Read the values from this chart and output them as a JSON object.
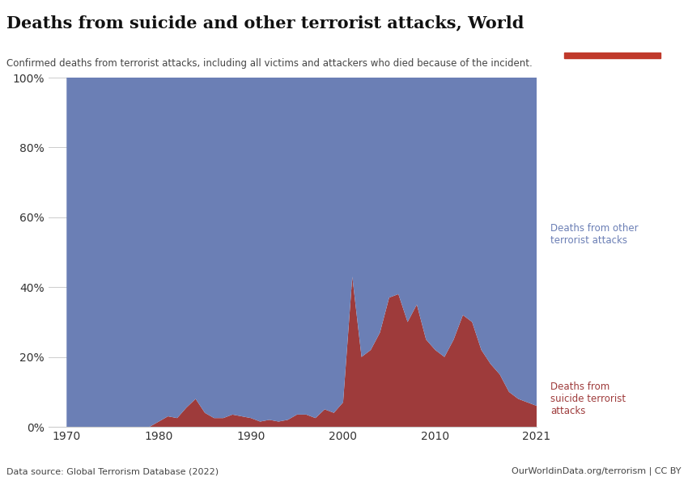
{
  "title": "Deaths from suicide and other terrorist attacks, World",
  "subtitle": "Confirmed deaths from terrorist attacks, including all victims and attackers who died because of the incident.",
  "datasource": "Data source: Global Terrorism Database (2022)",
  "url": "OurWorldinData.org/terrorism | CC BY",
  "color_blue": "#6b7fb5",
  "color_red": "#9e3b3b",
  "label_blue": "Deaths from other\nterrorist attacks",
  "label_red": "Deaths from\nsuicide terrorist\nattacks",
  "years": [
    1970,
    1971,
    1972,
    1973,
    1974,
    1975,
    1976,
    1977,
    1978,
    1979,
    1980,
    1981,
    1982,
    1983,
    1984,
    1985,
    1986,
    1987,
    1988,
    1989,
    1990,
    1991,
    1992,
    1993,
    1994,
    1995,
    1996,
    1997,
    1998,
    1999,
    2000,
    2001,
    2002,
    2003,
    2004,
    2005,
    2006,
    2007,
    2008,
    2009,
    2010,
    2011,
    2012,
    2013,
    2014,
    2015,
    2016,
    2017,
    2018,
    2019,
    2020,
    2021
  ],
  "suicide_pct": [
    0.0,
    0.0,
    0.0,
    0.0,
    0.0,
    0.0,
    0.0,
    0.0,
    0.0,
    0.0,
    1.5,
    3.0,
    2.5,
    5.5,
    8.0,
    4.0,
    2.5,
    2.5,
    3.5,
    3.0,
    2.5,
    1.5,
    2.0,
    1.5,
    2.0,
    3.5,
    3.5,
    2.5,
    5.0,
    4.0,
    7.0,
    43.0,
    20.0,
    22.0,
    27.0,
    37.0,
    38.0,
    30.0,
    35.0,
    25.0,
    22.0,
    20.0,
    25.0,
    32.0,
    30.0,
    22.0,
    18.0,
    15.0,
    10.0,
    8.0,
    7.0,
    6.0
  ],
  "owid_box_bg": "#1a2e4a",
  "owid_box_red": "#c0392b",
  "owid_text": "#ffffff"
}
